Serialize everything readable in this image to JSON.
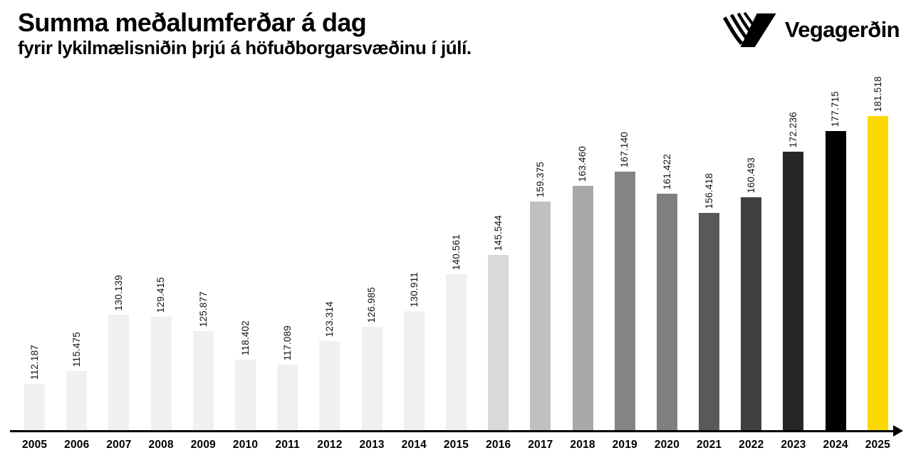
{
  "header": {
    "title": "Summa meðalumferðar á dag",
    "subtitle": "fyrir lykilmælisniðin þrjú á höfuðborgarsvæðinu í júlí."
  },
  "logo": {
    "text": "Vegagerðin",
    "mark_icon": "vegagerdin-striped-v-icon",
    "color": "#000000"
  },
  "chart_data": {
    "type": "bar",
    "title": "Summa meðalumferðar á dag fyrir lykilmælisniðin þrjú á höfuðborgarsvæðinu í júlí",
    "categories": [
      "2005",
      "2006",
      "2007",
      "2008",
      "2009",
      "2010",
      "2011",
      "2012",
      "2013",
      "2014",
      "2015",
      "2016",
      "2017",
      "2018",
      "2019",
      "2020",
      "2021",
      "2022",
      "2023",
      "2024",
      "2025"
    ],
    "values": [
      112187,
      115475,
      130139,
      129415,
      125877,
      118402,
      117089,
      123314,
      126985,
      130911,
      140561,
      145544,
      159375,
      163460,
      167140,
      161422,
      156418,
      160493,
      172236,
      177715,
      181518
    ],
    "value_labels": [
      "112.187",
      "115.475",
      "130.139",
      "129.415",
      "125.877",
      "118.402",
      "117.089",
      "123.314",
      "126.985",
      "130.911",
      "140.561",
      "145.544",
      "159.375",
      "163.460",
      "167.140",
      "161.422",
      "156.418",
      "160.493",
      "172.236",
      "177.715",
      "181.518"
    ],
    "bar_colors": [
      "#f0f0f0",
      "#f0f0f0",
      "#f0f0f0",
      "#f0f0f0",
      "#f0f0f0",
      "#f0f0f0",
      "#f0f0f0",
      "#f0f0f0",
      "#f0f0f0",
      "#f0f0f0",
      "#f0f0f0",
      "#d9d9d9",
      "#c0c0c0",
      "#a8a8a8",
      "#848484",
      "#7f7f7f",
      "#595959",
      "#404040",
      "#262626",
      "#000000",
      "#fdd800"
    ],
    "xlabel": "",
    "ylabel": "",
    "ylim": [
      100000,
      185000
    ],
    "grid": false,
    "legend": false,
    "value_label_rotation": 90,
    "axis_style": "black-arrow-x-axis",
    "highlight": {
      "year": "2025",
      "color": "#fdd800"
    }
  }
}
